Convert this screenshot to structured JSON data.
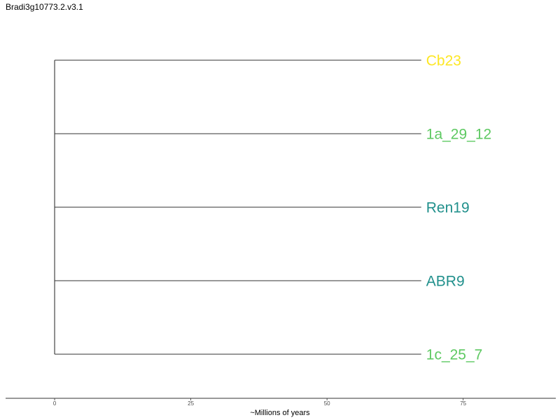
{
  "chart_data": {
    "type": "dendrogram",
    "title": "Bradi3g10773.2.v3.1",
    "xlabel": "~Millions of years",
    "xlim": [
      -9,
      92
    ],
    "xticks": [
      0,
      25,
      50,
      75
    ],
    "tips": [
      {
        "name": "Cb23",
        "branch_end": 67.3,
        "color": "#FDE725"
      },
      {
        "name": "1a_29_12",
        "branch_end": 67.3,
        "color": "#5EC962"
      },
      {
        "name": "Ren19",
        "branch_end": 67.3,
        "color": "#21908C"
      },
      {
        "name": "ABR9",
        "branch_end": 67.3,
        "color": "#21908C"
      },
      {
        "name": "1c_25_7",
        "branch_end": 67.3,
        "color": "#5EC962"
      }
    ],
    "root_x": 0,
    "grid": false
  },
  "colors": {
    "branch": "#333333",
    "axis": "#333333"
  }
}
